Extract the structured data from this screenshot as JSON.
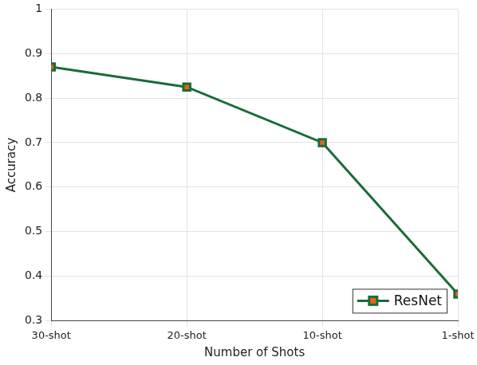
{
  "chart_data": {
    "type": "line",
    "x_label": "Number of Shots",
    "y_label": "Accuracy",
    "categories": [
      "30-shot",
      "20-shot",
      "10-shot",
      "1-shot"
    ],
    "series": [
      {
        "name": "ResNet",
        "color": "#1b6b3a",
        "marker": "square",
        "values": [
          0.87,
          0.825,
          0.7,
          0.36
        ]
      }
    ],
    "ylim": [
      0.3,
      1
    ],
    "yticks": [
      0.3,
      0.4,
      0.5,
      0.6,
      0.7,
      0.8,
      0.9,
      1
    ],
    "grid": true,
    "legend": "lower right"
  }
}
